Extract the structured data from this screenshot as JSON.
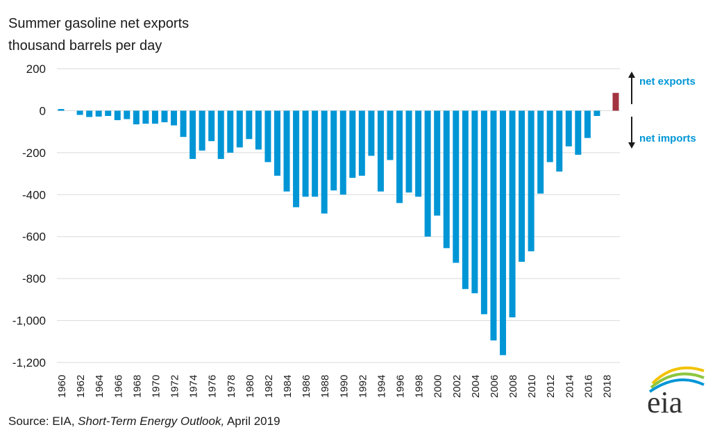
{
  "chart_data": {
    "type": "bar",
    "title": "Summer gasoline net exports",
    "subtitle": "thousand barrels per day",
    "ylim": [
      -1200,
      200
    ],
    "y_ticks": [
      200,
      0,
      -200,
      -400,
      -600,
      -800,
      -1000,
      -1200
    ],
    "y_tick_labels": [
      "200",
      "0",
      "-200",
      "-400",
      "-600",
      "-800",
      "-1,000",
      "-1,200"
    ],
    "x_tick_labels": [
      "1960",
      "1962",
      "1964",
      "1966",
      "1968",
      "1970",
      "1972",
      "1974",
      "1976",
      "1978",
      "1980",
      "1982",
      "1984",
      "1986",
      "1988",
      "1990",
      "1992",
      "1994",
      "1996",
      "1998",
      "2000",
      "2002",
      "2004",
      "2006",
      "2008",
      "2010",
      "2012",
      "2014",
      "2016",
      "2018"
    ],
    "categories": [
      1960,
      1961,
      1962,
      1963,
      1964,
      1965,
      1966,
      1967,
      1968,
      1969,
      1970,
      1971,
      1972,
      1973,
      1974,
      1975,
      1976,
      1977,
      1978,
      1979,
      1980,
      1981,
      1982,
      1983,
      1984,
      1985,
      1986,
      1987,
      1988,
      1989,
      1990,
      1991,
      1992,
      1993,
      1994,
      1995,
      1996,
      1997,
      1998,
      1999,
      2000,
      2001,
      2002,
      2003,
      2004,
      2005,
      2006,
      2007,
      2008,
      2009,
      2010,
      2011,
      2012,
      2013,
      2014,
      2015,
      2016,
      2017,
      2018,
      2019
    ],
    "values": [
      8,
      0,
      -20,
      -30,
      -28,
      -25,
      -45,
      -40,
      -65,
      -62,
      -62,
      -55,
      -70,
      -125,
      -230,
      -190,
      -145,
      -230,
      -200,
      -175,
      -135,
      -185,
      -245,
      -310,
      -385,
      -460,
      -410,
      -410,
      -490,
      -380,
      -400,
      -320,
      -310,
      -215,
      -385,
      -235,
      -440,
      -390,
      -410,
      -600,
      -500,
      -655,
      -725,
      -850,
      -870,
      -970,
      -1095,
      -1165,
      -985,
      -720,
      -670,
      -395,
      -245,
      -290,
      -170,
      -210,
      -130,
      -25,
      0,
      85
    ],
    "bar_colors": {
      "historical": "#0096d6",
      "forecast": "#a33340"
    },
    "forecast_from": 2019,
    "grid": true,
    "annotations": {
      "up": "net exports",
      "down": "net imports"
    }
  },
  "source": {
    "prefix": "Source: EIA, ",
    "italic": "Short-Term Energy Outlook,",
    "suffix": " April 2019"
  },
  "logo_text": "eia"
}
